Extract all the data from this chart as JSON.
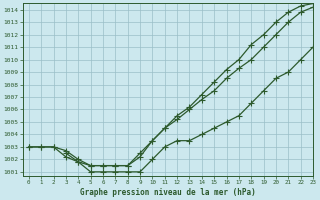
{
  "title": "Graphe pression niveau de la mer (hPa)",
  "bg_color": "#cce8ee",
  "line_color": "#2d5a2d",
  "grid_color": "#9abfc8",
  "xlim": [
    -0.5,
    23
  ],
  "ylim": [
    1000.7,
    1014.5
  ],
  "yticks": [
    1001,
    1002,
    1003,
    1004,
    1005,
    1006,
    1007,
    1008,
    1009,
    1010,
    1011,
    1012,
    1013,
    1014
  ],
  "xticks": [
    0,
    1,
    2,
    3,
    4,
    5,
    6,
    7,
    8,
    9,
    10,
    11,
    12,
    13,
    14,
    15,
    16,
    17,
    18,
    19,
    20,
    21,
    22,
    23
  ],
  "line1": {
    "x": [
      0,
      1,
      2,
      3,
      4,
      5,
      6,
      7,
      8,
      9,
      10,
      11,
      12,
      13,
      14,
      15,
      16,
      17,
      18,
      19,
      20,
      21,
      22,
      23
    ],
    "y": [
      1003.0,
      1003.0,
      1003.0,
      1002.2,
      1001.8,
      1001.0,
      1001.0,
      1001.0,
      1001.0,
      1001.0,
      1002.0,
      1003.0,
      1003.5,
      1003.5,
      1004.0,
      1004.5,
      1005.0,
      1005.5,
      1006.5,
      1007.5,
      1008.5,
      1009.0,
      1010.0,
      1011.0
    ]
  },
  "line2": {
    "x": [
      0,
      1,
      2,
      3,
      4,
      5,
      6,
      7,
      8,
      9,
      10,
      11,
      12,
      13,
      14,
      15,
      16,
      17,
      18,
      19,
      20,
      21,
      22,
      23
    ],
    "y": [
      1003.0,
      1003.0,
      1003.0,
      1002.7,
      1002.0,
      1001.5,
      1001.5,
      1001.5,
      1001.5,
      1002.5,
      1003.5,
      1004.5,
      1005.2,
      1006.0,
      1006.8,
      1007.5,
      1008.5,
      1009.3,
      1010.0,
      1011.0,
      1012.0,
      1013.0,
      1013.8,
      1014.2
    ]
  },
  "line3": {
    "x": [
      3,
      4,
      5,
      6,
      7,
      8,
      9,
      10,
      11,
      12,
      13,
      14,
      15,
      16,
      17,
      18,
      19,
      20,
      21,
      22,
      23
    ],
    "y": [
      1002.5,
      1001.8,
      1001.5,
      1001.5,
      1001.5,
      1001.5,
      1002.2,
      1003.5,
      1004.5,
      1005.5,
      1006.2,
      1007.2,
      1008.2,
      1009.2,
      1010.0,
      1011.2,
      1012.0,
      1013.0,
      1013.8,
      1014.3,
      1014.5
    ]
  }
}
